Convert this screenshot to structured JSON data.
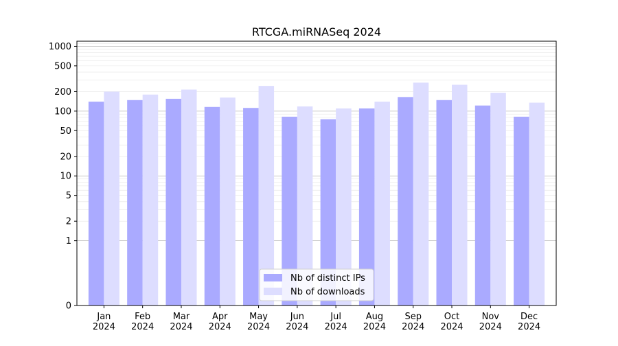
{
  "chart_data": {
    "type": "bar",
    "title": "RTCGA.miRNASeq 2024",
    "xlabel": "",
    "ylabel": "",
    "y_scale": "symlog",
    "ylim": [
      0,
      1200
    ],
    "y_ticks": [
      0,
      1,
      2,
      5,
      10,
      20,
      50,
      100,
      200,
      500,
      1000
    ],
    "categories": [
      "Jan\n2024",
      "Feb\n2024",
      "Mar\n2024",
      "Apr\n2024",
      "May\n2024",
      "Jun\n2024",
      "Jul\n2024",
      "Aug\n2024",
      "Sep\n2024",
      "Oct\n2024",
      "Nov\n2024",
      "Dec\n2024"
    ],
    "series": [
      {
        "name": "Nb of distinct IPs",
        "color": "#aaaaff",
        "values": [
          140,
          148,
          155,
          116,
          112,
          82,
          75,
          110,
          165,
          148,
          122,
          82
        ]
      },
      {
        "name": "Nb of downloads",
        "color": "#ddddff",
        "values": [
          200,
          180,
          215,
          162,
          245,
          118,
          110,
          140,
          275,
          255,
          192,
          135
        ]
      }
    ],
    "legend_position": "bottom-center",
    "grid": true
  }
}
